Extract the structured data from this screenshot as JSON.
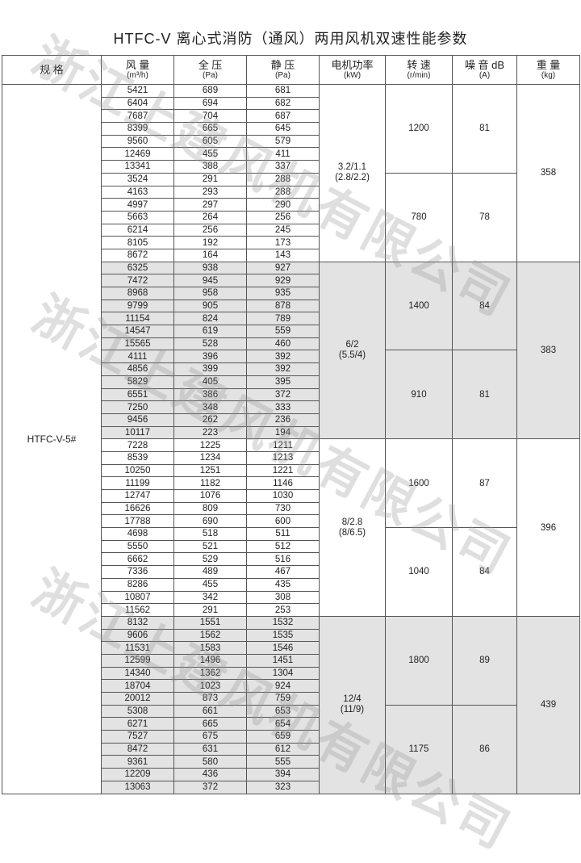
{
  "title": "HTFC-V 离心式消防（通风）两用风机双速性能参数",
  "watermark": "浙江上建风机有限公司",
  "headers": [
    {
      "label": "规 格",
      "unit": ""
    },
    {
      "label": "风 量",
      "unit": "(m³/h)"
    },
    {
      "label": "全 压",
      "unit": "(Pa)"
    },
    {
      "label": "静 压",
      "unit": "(Pa)"
    },
    {
      "label": "电机功率",
      "unit": "(kW)"
    },
    {
      "label": "转 速",
      "unit": "(r/min)"
    },
    {
      "label": "噪 音 dB",
      "unit": "(A)"
    },
    {
      "label": "重 量",
      "unit": "(kg)"
    }
  ],
  "spec": "HTFC-V-5#",
  "shade_color": "#e3e3e3",
  "groups": [
    {
      "motor": "3.2/1.1",
      "motor_sub": "(2.8/2.2)",
      "weight": "358",
      "shaded": false,
      "speeds": [
        {
          "rpm": "1200",
          "noise": "81",
          "rows": [
            [
              "5421",
              "689",
              "681"
            ],
            [
              "6404",
              "694",
              "682"
            ],
            [
              "7687",
              "704",
              "687"
            ],
            [
              "8399",
              "665",
              "645"
            ],
            [
              "9560",
              "605",
              "579"
            ],
            [
              "12469",
              "455",
              "411"
            ],
            [
              "13341",
              "388",
              "337"
            ]
          ]
        },
        {
          "rpm": "780",
          "noise": "78",
          "rows": [
            [
              "3524",
              "291",
              "288"
            ],
            [
              "4163",
              "293",
              "288"
            ],
            [
              "4997",
              "297",
              "290"
            ],
            [
              "5663",
              "264",
              "256"
            ],
            [
              "6214",
              "256",
              "245"
            ],
            [
              "8105",
              "192",
              "173"
            ],
            [
              "8672",
              "164",
              "143"
            ]
          ]
        }
      ]
    },
    {
      "motor": "6/2",
      "motor_sub": "(5.5/4)",
      "weight": "383",
      "shaded": true,
      "speeds": [
        {
          "rpm": "1400",
          "noise": "84",
          "rows": [
            [
              "6325",
              "938",
              "927"
            ],
            [
              "7472",
              "945",
              "929"
            ],
            [
              "8968",
              "958",
              "935"
            ],
            [
              "9799",
              "905",
              "878"
            ],
            [
              "11154",
              "824",
              "789"
            ],
            [
              "14547",
              "619",
              "559"
            ],
            [
              "15565",
              "528",
              "460"
            ]
          ]
        },
        {
          "rpm": "910",
          "noise": "81",
          "rows": [
            [
              "4111",
              "396",
              "392"
            ],
            [
              "4856",
              "399",
              "392"
            ],
            [
              "5829",
              "405",
              "395"
            ],
            [
              "6551",
              "386",
              "372"
            ],
            [
              "7250",
              "348",
              "333"
            ],
            [
              "9456",
              "262",
              "236"
            ],
            [
              "10117",
              "223",
              "194"
            ]
          ]
        }
      ]
    },
    {
      "motor": "8/2.8",
      "motor_sub": "(8/6.5)",
      "weight": "396",
      "shaded": false,
      "speeds": [
        {
          "rpm": "1600",
          "noise": "87",
          "rows": [
            [
              "7228",
              "1225",
              "1211"
            ],
            [
              "8539",
              "1234",
              "1213"
            ],
            [
              "10250",
              "1251",
              "1221"
            ],
            [
              "11199",
              "1182",
              "1146"
            ],
            [
              "12747",
              "1076",
              "1030"
            ],
            [
              "16626",
              "809",
              "730"
            ],
            [
              "17788",
              "690",
              "600"
            ]
          ]
        },
        {
          "rpm": "1040",
          "noise": "84",
          "rows": [
            [
              "4698",
              "518",
              "511"
            ],
            [
              "5550",
              "521",
              "512"
            ],
            [
              "6662",
              "529",
              "516"
            ],
            [
              "7336",
              "489",
              "467"
            ],
            [
              "8286",
              "455",
              "435"
            ],
            [
              "10807",
              "342",
              "308"
            ],
            [
              "11562",
              "291",
              "253"
            ]
          ]
        }
      ]
    },
    {
      "motor": "12/4",
      "motor_sub": "(11/9)",
      "weight": "439",
      "shaded": true,
      "speeds": [
        {
          "rpm": "1800",
          "noise": "89",
          "rows": [
            [
              "8132",
              "1551",
              "1532"
            ],
            [
              "9606",
              "1562",
              "1535"
            ],
            [
              "11531",
              "1583",
              "1546"
            ],
            [
              "12599",
              "1496",
              "1451"
            ],
            [
              "14340",
              "1362",
              "1304"
            ],
            [
              "18704",
              "1023",
              "924"
            ],
            [
              "20012",
              "873",
              "759"
            ]
          ]
        },
        {
          "rpm": "1175",
          "noise": "86",
          "rows": [
            [
              "5308",
              "661",
              "653"
            ],
            [
              "6271",
              "665",
              "654"
            ],
            [
              "7527",
              "675",
              "659"
            ],
            [
              "8472",
              "631",
              "612"
            ],
            [
              "9361",
              "580",
              "555"
            ],
            [
              "12209",
              "436",
              "394"
            ],
            [
              "13063",
              "372",
              "323"
            ]
          ]
        }
      ]
    }
  ]
}
